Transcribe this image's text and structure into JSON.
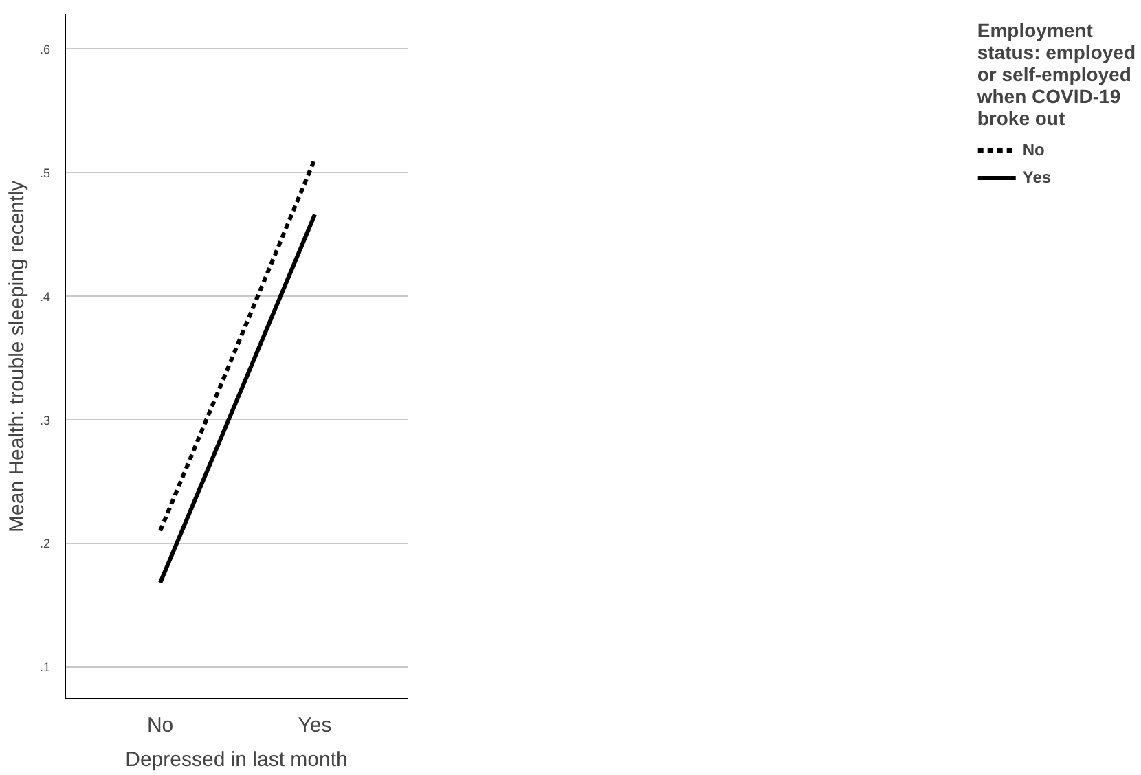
{
  "chart_data": {
    "type": "line",
    "xlabel": "Depressed in last month",
    "ylabel": "Mean Health: trouble sleeping recently",
    "legend_title": "Employment status: employed or self-employed when COVID-19 broke out",
    "categories": [
      "No",
      "Yes"
    ],
    "series": [
      {
        "name": "No",
        "color": "#000000",
        "values": [
          0.21,
          0.511
        ],
        "line_style": "dashed"
      },
      {
        "name": "Yes",
        "color": "#000000",
        "values": [
          0.168,
          0.466
        ],
        "line_style": "solid"
      }
    ],
    "ylim": [
      0.074,
      0.628
    ],
    "yticks": [
      {
        "value": 0.1,
        "label": ".1"
      },
      {
        "value": 0.2,
        "label": ".2"
      },
      {
        "value": 0.3,
        "label": ".3"
      },
      {
        "value": 0.4,
        "label": ".4"
      },
      {
        "value": 0.5,
        "label": ".5"
      },
      {
        "value": 0.6,
        "label": ".6"
      }
    ],
    "grid": "y",
    "legend": "right",
    "marker": "none"
  }
}
